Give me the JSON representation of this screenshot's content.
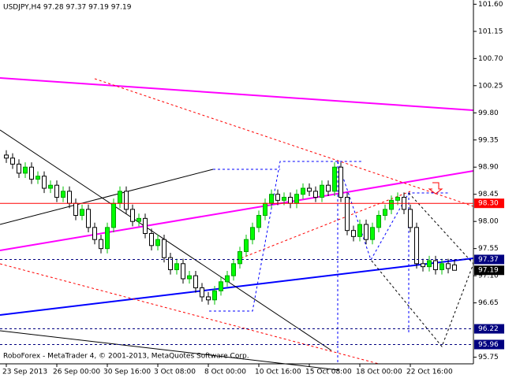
{
  "chart_data": {
    "type": "candlestick",
    "title": "USDJPY,H4  97.28 97.37 97.19 97.19",
    "footer": "RoboForex - MetaTrader 4, © 2001-2013, MetaQuotes Software Corp.",
    "categories": [
      "23 Sep 2013",
      null,
      null,
      null,
      null,
      null,
      null,
      null,
      "26 Sep 00:00",
      null,
      null,
      null,
      null,
      null,
      null,
      null,
      "30 Sep 16:00",
      null,
      null,
      null,
      null,
      null,
      null,
      null,
      "3 Oct 08:00",
      null,
      null,
      null,
      null,
      null,
      null,
      null,
      "8 Oct 00:00",
      null,
      null,
      null,
      null,
      null,
      null,
      null,
      "10 Oct 16:00",
      null,
      null,
      null,
      null,
      null,
      null,
      null,
      "15 Oct 08:00",
      null,
      null,
      null,
      null,
      null,
      null,
      null,
      "18 Oct 00:00",
      null,
      null,
      null,
      null,
      null,
      null,
      null,
      "22 Oct 16:00",
      null,
      null,
      null,
      null,
      null,
      null,
      null
    ],
    "open": [
      99.1,
      99.05,
      98.95,
      98.8,
      98.9,
      98.7,
      98.75,
      98.55,
      98.6,
      98.4,
      98.5,
      98.3,
      98.1,
      98.2,
      97.9,
      97.7,
      97.55,
      97.9,
      98.3,
      98.5,
      98.2,
      98.0,
      98.05,
      97.8,
      97.6,
      97.7,
      97.4,
      97.2,
      97.3,
      97.05,
      97.1,
      96.9,
      96.75,
      96.7,
      96.85,
      97.0,
      97.1,
      97.3,
      97.5,
      97.7,
      97.9,
      98.1,
      98.3,
      98.45,
      98.35,
      98.4,
      98.3,
      98.45,
      98.55,
      98.5,
      98.4,
      98.6,
      98.5,
      98.9,
      98.4,
      97.85,
      97.75,
      97.95,
      97.7,
      97.9,
      98.1,
      98.2,
      98.35,
      98.4,
      98.2,
      97.9,
      97.3,
      97.25,
      97.35,
      97.2,
      97.3,
      97.28
    ],
    "high": [
      99.18,
      99.13,
      99.03,
      98.98,
      98.98,
      98.83,
      98.83,
      98.68,
      98.68,
      98.58,
      98.58,
      98.38,
      98.28,
      98.28,
      97.98,
      97.78,
      97.98,
      98.38,
      98.58,
      98.58,
      98.28,
      98.13,
      98.13,
      97.88,
      97.78,
      97.78,
      97.48,
      97.38,
      97.38,
      97.18,
      97.18,
      96.98,
      96.83,
      96.93,
      97.08,
      97.18,
      97.38,
      97.58,
      97.78,
      97.98,
      98.18,
      98.38,
      98.53,
      98.53,
      98.48,
      98.48,
      98.53,
      98.63,
      98.63,
      98.58,
      98.68,
      98.68,
      98.98,
      98.98,
      98.48,
      97.93,
      98.03,
      98.03,
      97.98,
      98.18,
      98.28,
      98.43,
      98.48,
      98.48,
      98.28,
      97.98,
      97.38,
      97.43,
      97.43,
      97.38,
      97.38,
      97.37
    ],
    "low": [
      98.97,
      98.87,
      98.72,
      98.72,
      98.62,
      98.62,
      98.47,
      98.47,
      98.32,
      98.32,
      98.22,
      98.02,
      98.02,
      97.82,
      97.62,
      97.47,
      97.47,
      97.82,
      98.22,
      98.12,
      97.92,
      97.92,
      97.72,
      97.52,
      97.52,
      97.32,
      97.12,
      97.12,
      96.97,
      96.97,
      96.82,
      96.67,
      96.62,
      96.62,
      96.77,
      96.92,
      97.02,
      97.22,
      97.42,
      97.62,
      97.82,
      98.02,
      98.22,
      98.27,
      98.27,
      98.22,
      98.22,
      98.37,
      98.42,
      98.32,
      98.32,
      98.42,
      98.42,
      98.32,
      97.77,
      97.67,
      97.67,
      97.62,
      97.62,
      97.82,
      98.02,
      98.12,
      98.27,
      98.12,
      97.82,
      97.22,
      97.17,
      97.17,
      97.12,
      97.12,
      97.14,
      97.19
    ],
    "close": [
      99.05,
      98.95,
      98.8,
      98.9,
      98.7,
      98.75,
      98.55,
      98.6,
      98.4,
      98.5,
      98.3,
      98.1,
      98.2,
      97.9,
      97.7,
      97.55,
      97.9,
      98.3,
      98.5,
      98.2,
      98.0,
      98.05,
      97.8,
      97.6,
      97.7,
      97.4,
      97.2,
      97.3,
      97.05,
      97.1,
      96.9,
      96.75,
      96.7,
      96.85,
      97.0,
      97.1,
      97.3,
      97.5,
      97.7,
      97.9,
      98.1,
      98.3,
      98.45,
      98.35,
      98.4,
      98.3,
      98.45,
      98.55,
      98.5,
      98.4,
      98.6,
      98.5,
      98.9,
      98.4,
      97.85,
      97.75,
      97.95,
      97.7,
      97.9,
      98.1,
      98.2,
      98.35,
      98.4,
      98.2,
      97.9,
      97.3,
      97.25,
      97.35,
      97.2,
      97.3,
      97.22,
      97.19
    ],
    "up_color": "#00ff00",
    "down_color": "#ffffff",
    "ylim": [
      95.64,
      101.67
    ],
    "yticks": [
      {
        "value": 101.6,
        "label": "101.60"
      },
      101.15,
      {
        "value": 100.7,
        "label": "100.70"
      },
      100.25,
      {
        "value": 99.8,
        "label": "99.80"
      },
      99.35,
      {
        "value": 98.9,
        "label": "98.90"
      },
      98.45,
      {
        "value": 98.0,
        "label": "98.00"
      },
      97.55,
      {
        "value": 97.1,
        "label": "97.10"
      },
      96.65,
      95.75
    ],
    "price_levels": [
      {
        "value": 98.3,
        "label": "98.30",
        "color": "#ff0000",
        "style": "solid"
      },
      {
        "value": 97.37,
        "label": "97.37",
        "color": "#000080",
        "style": "dashed"
      },
      {
        "value": 97.19,
        "label": "97.19",
        "color": "#000000",
        "style": "none"
      },
      {
        "value": 96.22,
        "label": "96.22",
        "color": "#000080",
        "style": "dashed"
      },
      {
        "value": 95.96,
        "label": "95.96",
        "color": "#000080",
        "style": "dashed"
      }
    ]
  }
}
